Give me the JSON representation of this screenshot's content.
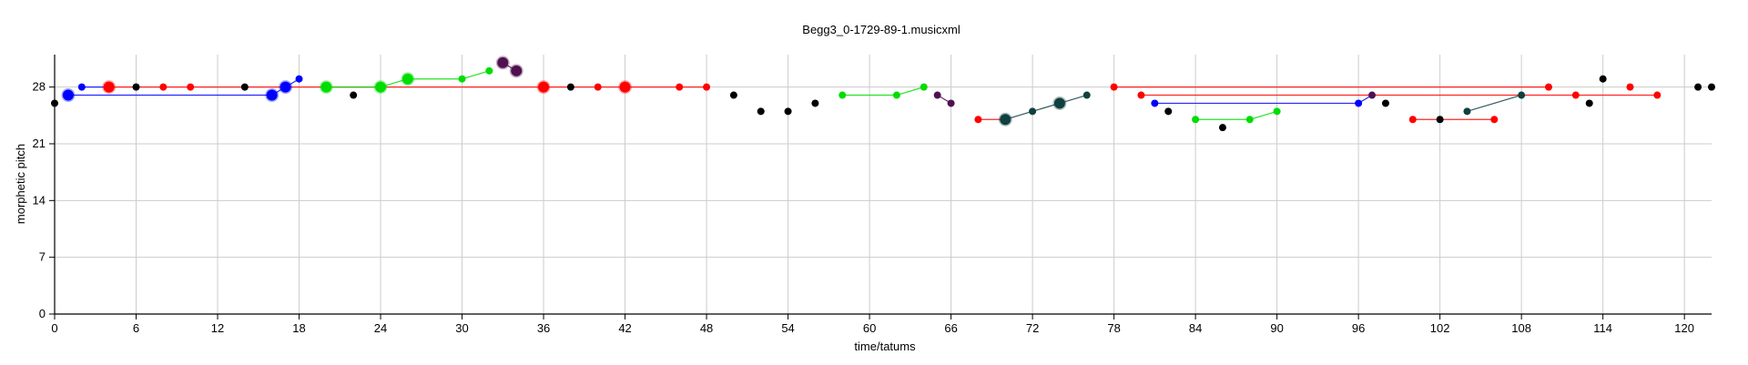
{
  "chart_data": {
    "type": "scatter",
    "title": "Begg3_0-1729-89-1.musicxml",
    "xlabel": "time/tatums",
    "ylabel": "morphetic pitch",
    "xlim": [
      0,
      122
    ],
    "ylim": [
      0,
      32
    ],
    "xticks": [
      0,
      6,
      12,
      18,
      24,
      30,
      36,
      42,
      48,
      54,
      60,
      66,
      72,
      78,
      84,
      90,
      96,
      102,
      108,
      114,
      120
    ],
    "yticks": [
      0,
      7,
      14,
      21,
      28
    ],
    "grid": true,
    "legend": "none",
    "lines": [
      {
        "color": "#0000ff",
        "points": [
          [
            1,
            27
          ],
          [
            16,
            27
          ],
          [
            17,
            28
          ],
          [
            18,
            29
          ]
        ]
      },
      {
        "color": "#0000ff",
        "points": [
          [
            2,
            28
          ],
          [
            4,
            28
          ]
        ]
      },
      {
        "color": "#ff0000",
        "points": [
          [
            4,
            28
          ],
          [
            48,
            28
          ]
        ]
      },
      {
        "color": "#00dd00",
        "points": [
          [
            20,
            28
          ],
          [
            24,
            28
          ],
          [
            26,
            29
          ],
          [
            30,
            29
          ],
          [
            32,
            30
          ]
        ]
      },
      {
        "color": "#501050",
        "points": [
          [
            33,
            31
          ],
          [
            34,
            30
          ]
        ]
      },
      {
        "color": "#00dd00",
        "points": [
          [
            58,
            27
          ],
          [
            62,
            27
          ],
          [
            64,
            28
          ]
        ]
      },
      {
        "color": "#501050",
        "points": [
          [
            65,
            27
          ],
          [
            66,
            26
          ]
        ]
      },
      {
        "color": "#ff0000",
        "points": [
          [
            68,
            24
          ],
          [
            70,
            24
          ]
        ]
      },
      {
        "color": "#104040",
        "points": [
          [
            70,
            24
          ],
          [
            72,
            25
          ],
          [
            74,
            26
          ],
          [
            76,
            27
          ]
        ]
      },
      {
        "color": "#ff0000",
        "points": [
          [
            78,
            28
          ],
          [
            110,
            28
          ]
        ]
      },
      {
        "color": "#ff0000",
        "points": [
          [
            80,
            27
          ],
          [
            118,
            27
          ]
        ]
      },
      {
        "color": "#0000ff",
        "points": [
          [
            81,
            26
          ],
          [
            96,
            26
          ],
          [
            97,
            27
          ]
        ]
      },
      {
        "color": "#00dd00",
        "points": [
          [
            84,
            24
          ],
          [
            88,
            24
          ],
          [
            90,
            25
          ]
        ]
      },
      {
        "color": "#ff0000",
        "points": [
          [
            100,
            24
          ],
          [
            106,
            24
          ]
        ]
      },
      {
        "color": "#104040",
        "points": [
          [
            104,
            25
          ],
          [
            108,
            27
          ]
        ]
      }
    ],
    "points": [
      {
        "x": 0,
        "y": 26,
        "color": "#000000",
        "size": "small"
      },
      {
        "x": 1,
        "y": 27,
        "color": "#0000ff",
        "size": "large"
      },
      {
        "x": 2,
        "y": 28,
        "color": "#0000ff",
        "size": "small"
      },
      {
        "x": 4,
        "y": 28,
        "color": "#ff0000",
        "size": "large"
      },
      {
        "x": 6,
        "y": 28,
        "color": "#000000",
        "size": "small"
      },
      {
        "x": 8,
        "y": 28,
        "color": "#ff0000",
        "size": "small"
      },
      {
        "x": 10,
        "y": 28,
        "color": "#ff0000",
        "size": "small"
      },
      {
        "x": 14,
        "y": 28,
        "color": "#000000",
        "size": "small"
      },
      {
        "x": 16,
        "y": 27,
        "color": "#0000ff",
        "size": "large"
      },
      {
        "x": 17,
        "y": 28,
        "color": "#0000ff",
        "size": "large"
      },
      {
        "x": 18,
        "y": 29,
        "color": "#0000ff",
        "size": "small"
      },
      {
        "x": 20,
        "y": 28,
        "color": "#00dd00",
        "size": "large"
      },
      {
        "x": 22,
        "y": 27,
        "color": "#000000",
        "size": "small"
      },
      {
        "x": 24,
        "y": 28,
        "color": "#00dd00",
        "size": "large"
      },
      {
        "x": 26,
        "y": 29,
        "color": "#00dd00",
        "size": "large"
      },
      {
        "x": 30,
        "y": 29,
        "color": "#00dd00",
        "size": "small"
      },
      {
        "x": 32,
        "y": 30,
        "color": "#00dd00",
        "size": "small"
      },
      {
        "x": 33,
        "y": 31,
        "color": "#501050",
        "size": "large"
      },
      {
        "x": 34,
        "y": 30,
        "color": "#501050",
        "size": "large"
      },
      {
        "x": 36,
        "y": 28,
        "color": "#ff0000",
        "size": "large"
      },
      {
        "x": 38,
        "y": 28,
        "color": "#000000",
        "size": "small"
      },
      {
        "x": 40,
        "y": 28,
        "color": "#ff0000",
        "size": "small"
      },
      {
        "x": 42,
        "y": 28,
        "color": "#ff0000",
        "size": "large"
      },
      {
        "x": 46,
        "y": 28,
        "color": "#ff0000",
        "size": "small"
      },
      {
        "x": 48,
        "y": 28,
        "color": "#ff0000",
        "size": "small"
      },
      {
        "x": 50,
        "y": 27,
        "color": "#000000",
        "size": "small"
      },
      {
        "x": 52,
        "y": 25,
        "color": "#000000",
        "size": "small"
      },
      {
        "x": 54,
        "y": 25,
        "color": "#000000",
        "size": "small"
      },
      {
        "x": 56,
        "y": 26,
        "color": "#000000",
        "size": "small"
      },
      {
        "x": 58,
        "y": 27,
        "color": "#00dd00",
        "size": "small"
      },
      {
        "x": 62,
        "y": 27,
        "color": "#00dd00",
        "size": "small"
      },
      {
        "x": 64,
        "y": 28,
        "color": "#00dd00",
        "size": "small"
      },
      {
        "x": 65,
        "y": 27,
        "color": "#501050",
        "size": "small"
      },
      {
        "x": 66,
        "y": 26,
        "color": "#501050",
        "size": "small"
      },
      {
        "x": 68,
        "y": 24,
        "color": "#ff0000",
        "size": "small"
      },
      {
        "x": 70,
        "y": 24,
        "color": "#104040",
        "size": "large"
      },
      {
        "x": 72,
        "y": 25,
        "color": "#104040",
        "size": "small"
      },
      {
        "x": 74,
        "y": 26,
        "color": "#104040",
        "size": "large"
      },
      {
        "x": 76,
        "y": 27,
        "color": "#104040",
        "size": "small"
      },
      {
        "x": 78,
        "y": 28,
        "color": "#ff0000",
        "size": "small"
      },
      {
        "x": 80,
        "y": 27,
        "color": "#ff0000",
        "size": "small"
      },
      {
        "x": 81,
        "y": 26,
        "color": "#0000ff",
        "size": "small"
      },
      {
        "x": 82,
        "y": 25,
        "color": "#000000",
        "size": "small"
      },
      {
        "x": 84,
        "y": 24,
        "color": "#00dd00",
        "size": "small"
      },
      {
        "x": 86,
        "y": 23,
        "color": "#000000",
        "size": "small"
      },
      {
        "x": 88,
        "y": 24,
        "color": "#00dd00",
        "size": "small"
      },
      {
        "x": 90,
        "y": 25,
        "color": "#00dd00",
        "size": "small"
      },
      {
        "x": 96,
        "y": 26,
        "color": "#0000ff",
        "size": "small"
      },
      {
        "x": 97,
        "y": 27,
        "color": "#501050",
        "size": "small"
      },
      {
        "x": 98,
        "y": 26,
        "color": "#000000",
        "size": "small"
      },
      {
        "x": 100,
        "y": 24,
        "color": "#ff0000",
        "size": "small"
      },
      {
        "x": 102,
        "y": 24,
        "color": "#000000",
        "size": "small"
      },
      {
        "x": 104,
        "y": 25,
        "color": "#104040",
        "size": "small"
      },
      {
        "x": 106,
        "y": 24,
        "color": "#ff0000",
        "size": "small"
      },
      {
        "x": 108,
        "y": 27,
        "color": "#104040",
        "size": "small"
      },
      {
        "x": 110,
        "y": 28,
        "color": "#ff0000",
        "size": "small"
      },
      {
        "x": 112,
        "y": 27,
        "color": "#ff0000",
        "size": "small"
      },
      {
        "x": 113,
        "y": 26,
        "color": "#000000",
        "size": "small"
      },
      {
        "x": 114,
        "y": 29,
        "color": "#000000",
        "size": "small"
      },
      {
        "x": 116,
        "y": 28,
        "color": "#ff0000",
        "size": "small"
      },
      {
        "x": 118,
        "y": 27,
        "color": "#ff0000",
        "size": "small"
      },
      {
        "x": 121,
        "y": 28,
        "color": "#000000",
        "size": "small"
      },
      {
        "x": 122,
        "y": 28,
        "color": "#000000",
        "size": "small"
      }
    ]
  }
}
